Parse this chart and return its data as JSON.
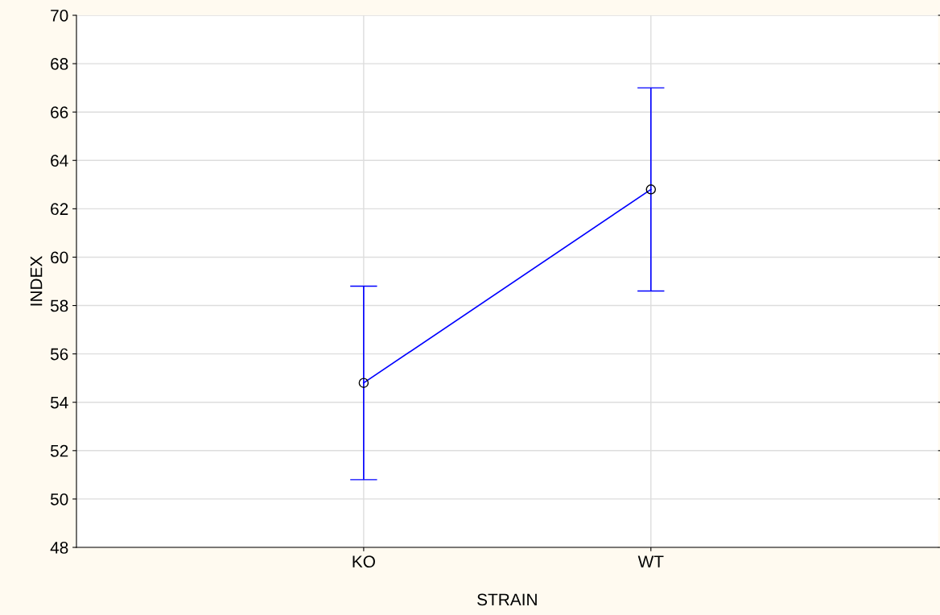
{
  "chart_data": {
    "type": "line",
    "xlabel": "STRAIN",
    "ylabel": "INDEX",
    "categories": [
      "KO",
      "WT"
    ],
    "series": [
      {
        "color": "#0000ff",
        "values": [
          54.8,
          62.8
        ],
        "errors": [
          4.0,
          4.2
        ]
      }
    ],
    "ylim": [
      48,
      70
    ],
    "yticks": [
      48,
      50,
      52,
      54,
      56,
      58,
      60,
      62,
      64,
      66,
      68,
      70
    ],
    "grid": true,
    "marker": "circle",
    "line_style": "solid",
    "legend": false
  }
}
